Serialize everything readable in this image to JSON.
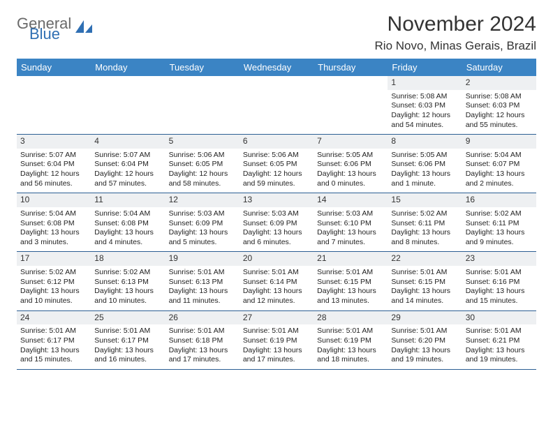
{
  "logo": {
    "general": "General",
    "blue": "Blue"
  },
  "title": {
    "month": "November 2024",
    "location": "Rio Novo, Minas Gerais, Brazil"
  },
  "colors": {
    "header_bg": "#3b84c4",
    "header_text": "#ffffff",
    "row_divider": "#2b5e93",
    "daynum_bg": "#eef0f2",
    "text": "#222222",
    "logo_gray": "#6a6a6a",
    "logo_blue": "#2f6fb3"
  },
  "dayHeaders": [
    "Sunday",
    "Monday",
    "Tuesday",
    "Wednesday",
    "Thursday",
    "Friday",
    "Saturday"
  ],
  "weeks": [
    [
      {
        "empty": true
      },
      {
        "empty": true
      },
      {
        "empty": true
      },
      {
        "empty": true
      },
      {
        "empty": true
      },
      {
        "n": "1",
        "sunrise": "Sunrise: 5:08 AM",
        "sunset": "Sunset: 6:03 PM",
        "daylight": "Daylight: 12 hours and 54 minutes."
      },
      {
        "n": "2",
        "sunrise": "Sunrise: 5:08 AM",
        "sunset": "Sunset: 6:03 PM",
        "daylight": "Daylight: 12 hours and 55 minutes."
      }
    ],
    [
      {
        "n": "3",
        "sunrise": "Sunrise: 5:07 AM",
        "sunset": "Sunset: 6:04 PM",
        "daylight": "Daylight: 12 hours and 56 minutes."
      },
      {
        "n": "4",
        "sunrise": "Sunrise: 5:07 AM",
        "sunset": "Sunset: 6:04 PM",
        "daylight": "Daylight: 12 hours and 57 minutes."
      },
      {
        "n": "5",
        "sunrise": "Sunrise: 5:06 AM",
        "sunset": "Sunset: 6:05 PM",
        "daylight": "Daylight: 12 hours and 58 minutes."
      },
      {
        "n": "6",
        "sunrise": "Sunrise: 5:06 AM",
        "sunset": "Sunset: 6:05 PM",
        "daylight": "Daylight: 12 hours and 59 minutes."
      },
      {
        "n": "7",
        "sunrise": "Sunrise: 5:05 AM",
        "sunset": "Sunset: 6:06 PM",
        "daylight": "Daylight: 13 hours and 0 minutes."
      },
      {
        "n": "8",
        "sunrise": "Sunrise: 5:05 AM",
        "sunset": "Sunset: 6:06 PM",
        "daylight": "Daylight: 13 hours and 1 minute."
      },
      {
        "n": "9",
        "sunrise": "Sunrise: 5:04 AM",
        "sunset": "Sunset: 6:07 PM",
        "daylight": "Daylight: 13 hours and 2 minutes."
      }
    ],
    [
      {
        "n": "10",
        "sunrise": "Sunrise: 5:04 AM",
        "sunset": "Sunset: 6:08 PM",
        "daylight": "Daylight: 13 hours and 3 minutes."
      },
      {
        "n": "11",
        "sunrise": "Sunrise: 5:04 AM",
        "sunset": "Sunset: 6:08 PM",
        "daylight": "Daylight: 13 hours and 4 minutes."
      },
      {
        "n": "12",
        "sunrise": "Sunrise: 5:03 AM",
        "sunset": "Sunset: 6:09 PM",
        "daylight": "Daylight: 13 hours and 5 minutes."
      },
      {
        "n": "13",
        "sunrise": "Sunrise: 5:03 AM",
        "sunset": "Sunset: 6:09 PM",
        "daylight": "Daylight: 13 hours and 6 minutes."
      },
      {
        "n": "14",
        "sunrise": "Sunrise: 5:03 AM",
        "sunset": "Sunset: 6:10 PM",
        "daylight": "Daylight: 13 hours and 7 minutes."
      },
      {
        "n": "15",
        "sunrise": "Sunrise: 5:02 AM",
        "sunset": "Sunset: 6:11 PM",
        "daylight": "Daylight: 13 hours and 8 minutes."
      },
      {
        "n": "16",
        "sunrise": "Sunrise: 5:02 AM",
        "sunset": "Sunset: 6:11 PM",
        "daylight": "Daylight: 13 hours and 9 minutes."
      }
    ],
    [
      {
        "n": "17",
        "sunrise": "Sunrise: 5:02 AM",
        "sunset": "Sunset: 6:12 PM",
        "daylight": "Daylight: 13 hours and 10 minutes."
      },
      {
        "n": "18",
        "sunrise": "Sunrise: 5:02 AM",
        "sunset": "Sunset: 6:13 PM",
        "daylight": "Daylight: 13 hours and 10 minutes."
      },
      {
        "n": "19",
        "sunrise": "Sunrise: 5:01 AM",
        "sunset": "Sunset: 6:13 PM",
        "daylight": "Daylight: 13 hours and 11 minutes."
      },
      {
        "n": "20",
        "sunrise": "Sunrise: 5:01 AM",
        "sunset": "Sunset: 6:14 PM",
        "daylight": "Daylight: 13 hours and 12 minutes."
      },
      {
        "n": "21",
        "sunrise": "Sunrise: 5:01 AM",
        "sunset": "Sunset: 6:15 PM",
        "daylight": "Daylight: 13 hours and 13 minutes."
      },
      {
        "n": "22",
        "sunrise": "Sunrise: 5:01 AM",
        "sunset": "Sunset: 6:15 PM",
        "daylight": "Daylight: 13 hours and 14 minutes."
      },
      {
        "n": "23",
        "sunrise": "Sunrise: 5:01 AM",
        "sunset": "Sunset: 6:16 PM",
        "daylight": "Daylight: 13 hours and 15 minutes."
      }
    ],
    [
      {
        "n": "24",
        "sunrise": "Sunrise: 5:01 AM",
        "sunset": "Sunset: 6:17 PM",
        "daylight": "Daylight: 13 hours and 15 minutes."
      },
      {
        "n": "25",
        "sunrise": "Sunrise: 5:01 AM",
        "sunset": "Sunset: 6:17 PM",
        "daylight": "Daylight: 13 hours and 16 minutes."
      },
      {
        "n": "26",
        "sunrise": "Sunrise: 5:01 AM",
        "sunset": "Sunset: 6:18 PM",
        "daylight": "Daylight: 13 hours and 17 minutes."
      },
      {
        "n": "27",
        "sunrise": "Sunrise: 5:01 AM",
        "sunset": "Sunset: 6:19 PM",
        "daylight": "Daylight: 13 hours and 17 minutes."
      },
      {
        "n": "28",
        "sunrise": "Sunrise: 5:01 AM",
        "sunset": "Sunset: 6:19 PM",
        "daylight": "Daylight: 13 hours and 18 minutes."
      },
      {
        "n": "29",
        "sunrise": "Sunrise: 5:01 AM",
        "sunset": "Sunset: 6:20 PM",
        "daylight": "Daylight: 13 hours and 19 minutes."
      },
      {
        "n": "30",
        "sunrise": "Sunrise: 5:01 AM",
        "sunset": "Sunset: 6:21 PM",
        "daylight": "Daylight: 13 hours and 19 minutes."
      }
    ]
  ]
}
